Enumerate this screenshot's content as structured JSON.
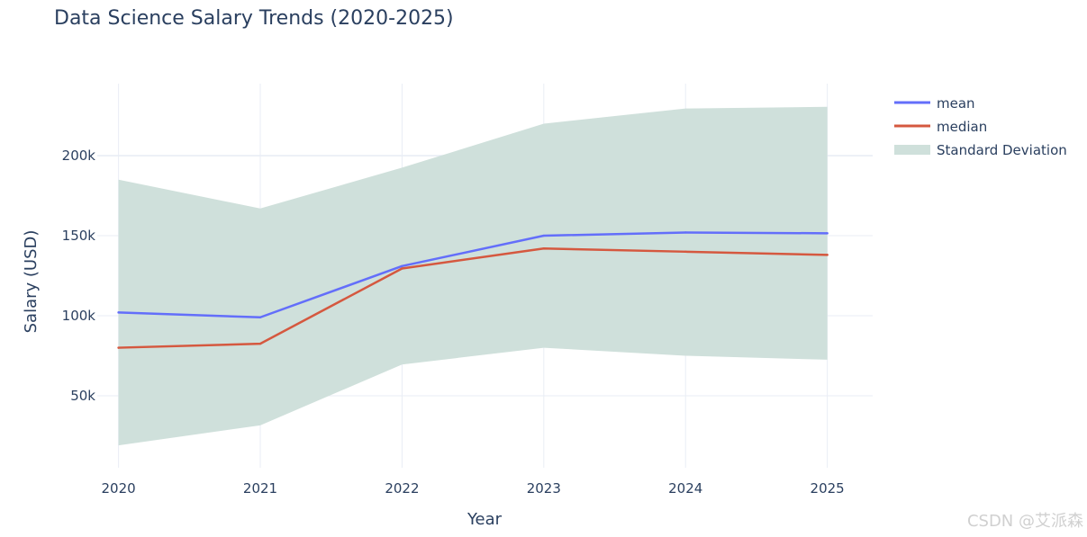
{
  "watermark": "CSDN @艾派森",
  "colors": {
    "text": "#2a3f5f",
    "grid": "#e9edf5",
    "mean": "#636efa",
    "median": "#d5583f",
    "std_fill": "#cfe0db"
  },
  "chart_data": {
    "type": "line",
    "title": "Data Science Salary Trends (2020-2025)",
    "xlabel": "Year",
    "ylabel": "Salary (USD)",
    "x": [
      2020,
      2021,
      2022,
      2023,
      2024,
      2025
    ],
    "xlim": [
      2019.85,
      2025.32
    ],
    "ylim": [
      5000,
      245000
    ],
    "yticks": [
      50000,
      100000,
      150000,
      200000
    ],
    "ytick_labels": [
      "50k",
      "100k",
      "150k",
      "200k"
    ],
    "legend_position": "top-right",
    "series": [
      {
        "name": "mean",
        "values": [
          102000,
          99000,
          131000,
          150000,
          152000,
          151500
        ],
        "color": "#636efa"
      },
      {
        "name": "median",
        "values": [
          80000,
          82500,
          129500,
          142000,
          140000,
          138000
        ],
        "color": "#d5583f"
      }
    ],
    "band": {
      "name": "Standard Deviation",
      "upper": [
        185000,
        167000,
        192500,
        220000,
        229500,
        230500
      ],
      "lower": [
        19000,
        31500,
        69500,
        80000,
        75000,
        72500
      ],
      "color": "#cfe0db"
    }
  }
}
